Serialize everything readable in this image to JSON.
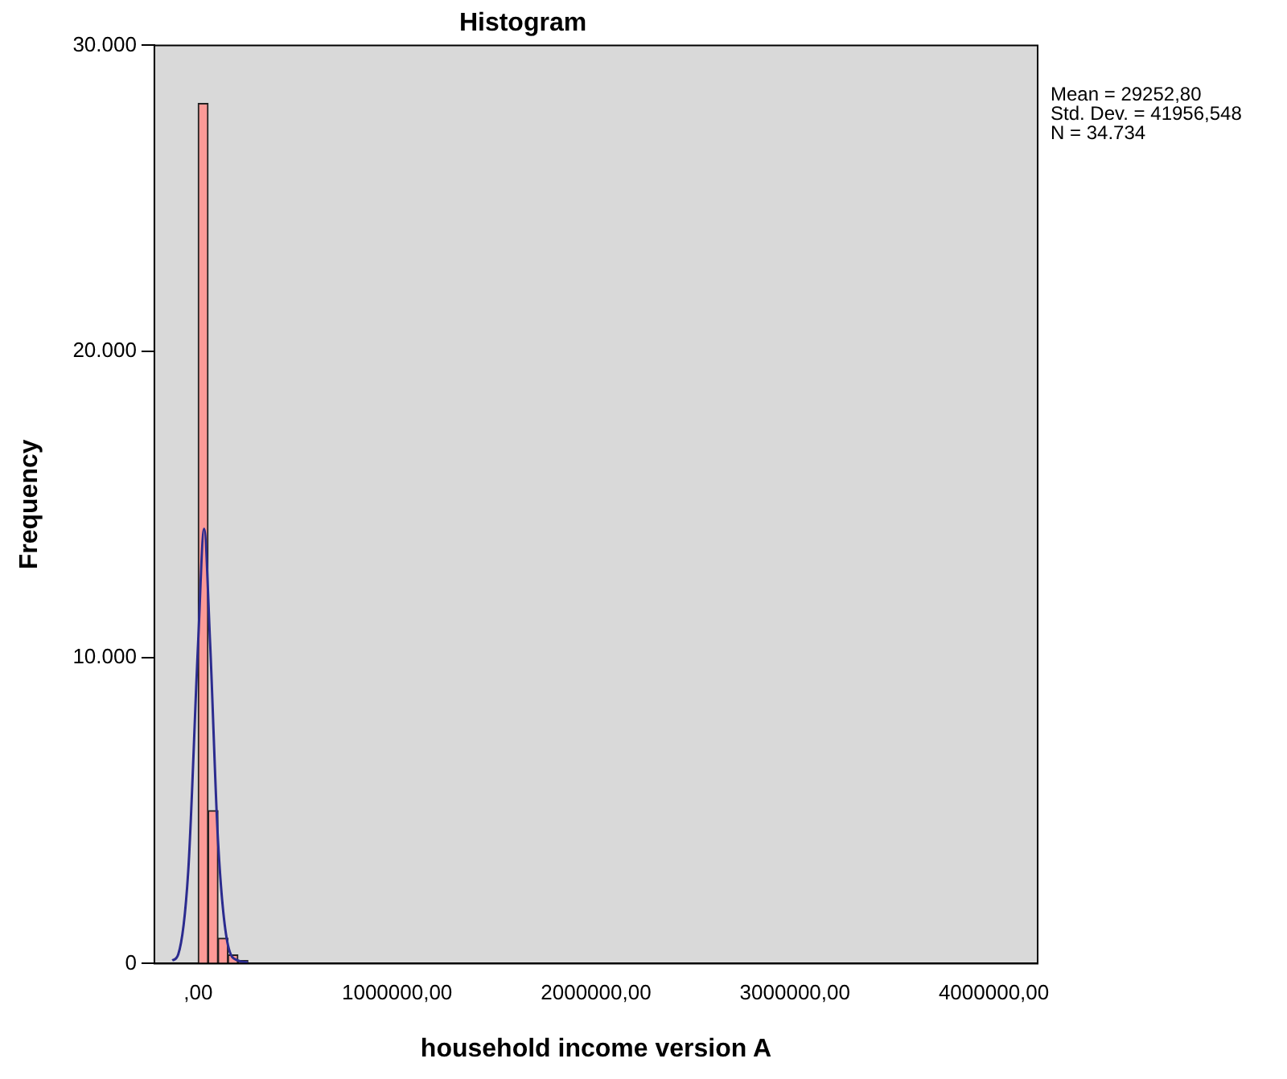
{
  "chart_data": {
    "type": "histogram",
    "title": "Histogram",
    "xlabel": "household income version A",
    "ylabel": "Frequency",
    "annotations": [
      "Mean = 29252,80",
      "Std. Dev. = 41956,548",
      "N = 34.734"
    ],
    "bins": [
      0,
      50000,
      100000,
      150000,
      200000,
      250000
    ],
    "values": [
      28100,
      5000,
      830,
      280,
      100
    ],
    "color": "#fc9a97",
    "series": [
      {
        "type": "line",
        "color": "#2b2b8f",
        "x": [
          -130000,
          -100000,
          -50000,
          0,
          30000,
          60000,
          100000,
          150000,
          200000,
          250000
        ],
        "values": [
          100,
          300,
          3000,
          10500,
          14200,
          10500,
          4000,
          600,
          100,
          40
        ]
      }
    ],
    "xlim": [
      -220000,
      4220000
    ],
    "xticks": [
      {
        "value": 0,
        "label": ",00"
      },
      {
        "value": 1000000,
        "label": "1000000,00"
      },
      {
        "value": 2000000,
        "label": "2000000,00"
      },
      {
        "value": 3000000,
        "label": "3000000,00"
      },
      {
        "value": 4000000,
        "label": "4000000,00"
      }
    ],
    "ylim": [
      0,
      30000
    ],
    "yticks": [
      {
        "value": 0,
        "label": "0"
      },
      {
        "value": 10000,
        "label": "10.000"
      },
      {
        "value": 20000,
        "label": "20.000"
      },
      {
        "value": 30000,
        "label": "30.000"
      }
    ],
    "grid": false,
    "legend": false
  }
}
